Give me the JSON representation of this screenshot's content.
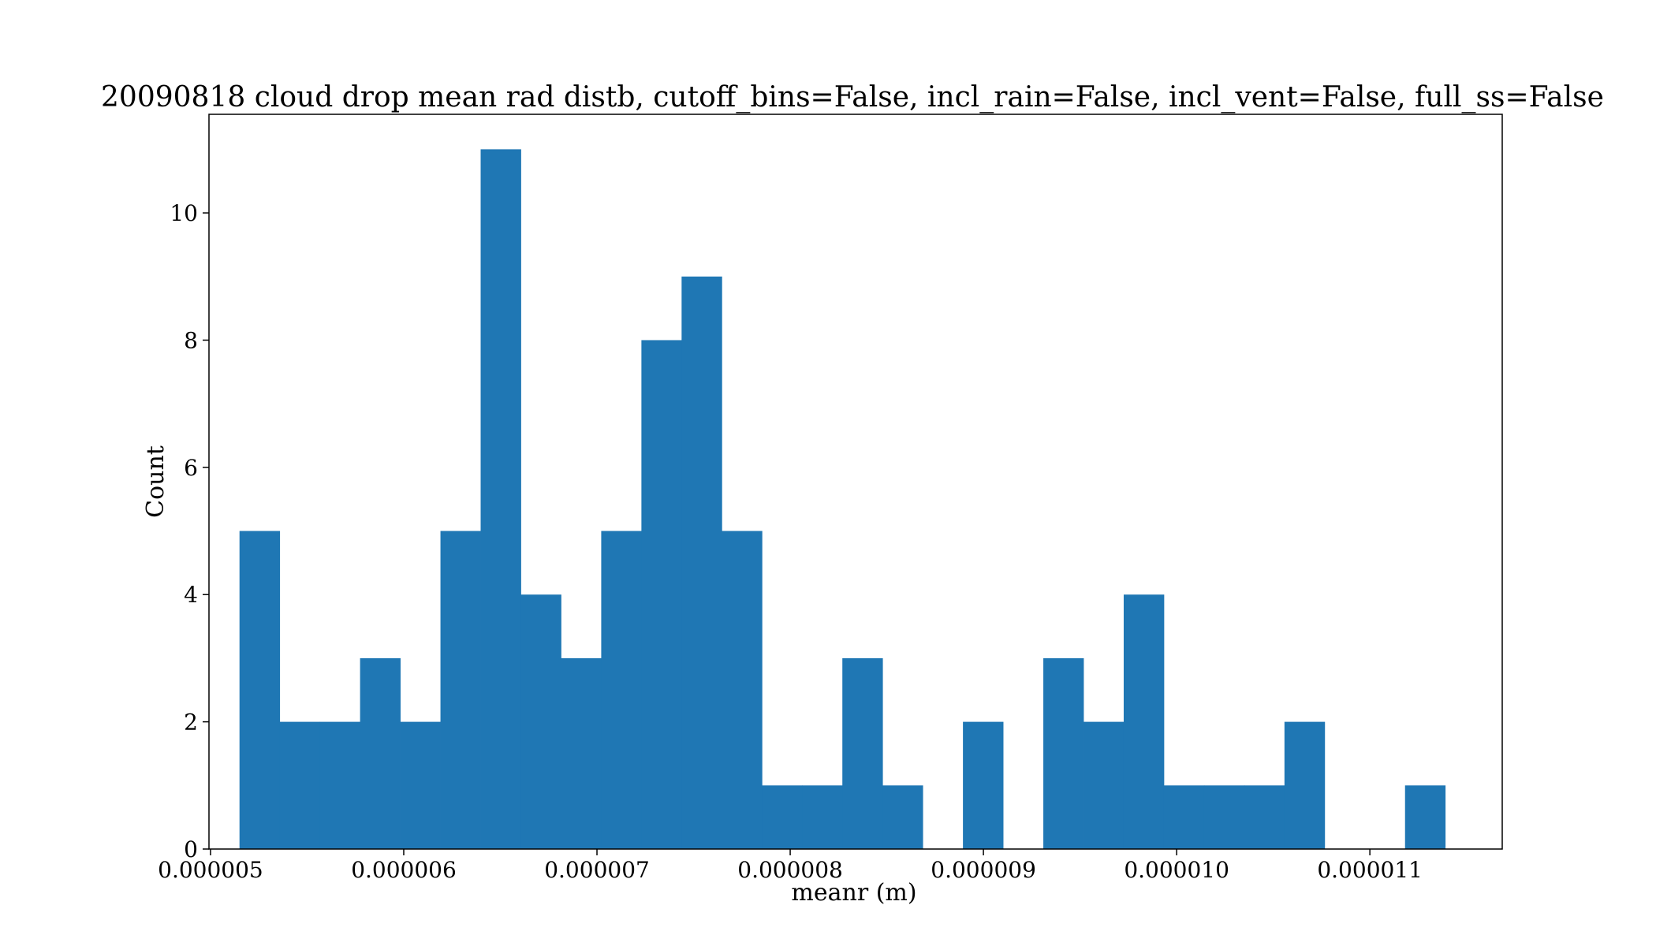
{
  "chart_data": {
    "type": "bar",
    "title": "20090818 cloud drop mean rad distb, cutoff_bins=False, incl_rain=False, incl_vent=False, full_ss=False",
    "xlabel": "meanr (m)",
    "ylabel": "Count",
    "xlim": [
      4.992e-06,
      1.1685e-05
    ],
    "ylim": [
      0,
      11.55
    ],
    "x_ticks": [
      5e-06,
      6e-06,
      7e-06,
      8e-06,
      9e-06,
      1e-05,
      1.1e-05
    ],
    "x_tick_labels": [
      "0.000005",
      "0.000006",
      "0.000007",
      "0.000008",
      "0.000009",
      "0.000010",
      "0.000011"
    ],
    "y_ticks": [
      0,
      2,
      4,
      6,
      8,
      10
    ],
    "y_tick_labels": [
      "0",
      "2",
      "4",
      "6",
      "8",
      "10"
    ],
    "bins_start": 5.15e-06,
    "bin_width": 2.08e-07,
    "values": [
      5,
      2,
      2,
      3,
      2,
      5,
      11,
      4,
      3,
      5,
      8,
      9,
      5,
      1,
      1,
      3,
      1,
      0,
      2,
      0,
      3,
      2,
      4,
      1,
      1,
      1,
      2,
      0,
      0,
      1
    ],
    "bar_color": "#1f77b4",
    "grid": false,
    "legend": "none"
  }
}
